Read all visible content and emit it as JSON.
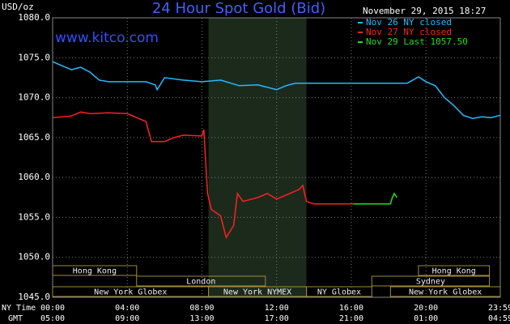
{
  "chart_data": {
    "type": "line",
    "title": "24 Hour Spot Gold (Bid)",
    "watermark": "www.kitco.com",
    "timestamp": "November 29, 2015 18:27",
    "ylabel": "USD/oz",
    "xlabel": "NY Time",
    "x2label": "GMT",
    "ylim": [
      1045,
      1080
    ],
    "yticks": [
      {
        "value": 1045,
        "label": "1045.0"
      },
      {
        "value": 1050,
        "label": "1050.0"
      },
      {
        "value": 1055,
        "label": "1055.0"
      },
      {
        "value": 1060,
        "label": "1060.0"
      },
      {
        "value": 1065,
        "label": "1065.0"
      },
      {
        "value": 1070,
        "label": "1070.0"
      },
      {
        "value": 1075,
        "label": "1075.0"
      },
      {
        "value": 1080,
        "label": "1080.0"
      }
    ],
    "xlim": [
      0,
      23.983
    ],
    "xticks": [
      {
        "value": 0,
        "label": "00:00"
      },
      {
        "value": 4,
        "label": "04:00"
      },
      {
        "value": 8,
        "label": "08:00"
      },
      {
        "value": 12,
        "label": "12:00"
      },
      {
        "value": 16,
        "label": "16:00"
      },
      {
        "value": 20,
        "label": "20:00"
      },
      {
        "value": 23.983,
        "label": "23:59"
      }
    ],
    "x2ticks": [
      {
        "value": 0,
        "label": "05:00"
      },
      {
        "value": 4,
        "label": "09:00"
      },
      {
        "value": 8,
        "label": "13:00"
      },
      {
        "value": 12,
        "label": "17:00"
      },
      {
        "value": 16,
        "label": "21:00"
      },
      {
        "value": 20,
        "label": "01:00"
      },
      {
        "value": 23.983,
        "label": "04:59"
      }
    ],
    "grid": true,
    "shaded_range": [
      8.35,
      13.6
    ],
    "sessions": [
      {
        "name": "Hong Kong",
        "row": 0,
        "start": 0,
        "end": 4.5
      },
      {
        "name": "Hong Kong",
        "row": 0,
        "start": 19.6,
        "end": 23.4
      },
      {
        "name": "London",
        "row": 1,
        "start": 4.5,
        "end": 11.4
      },
      {
        "name": "Sydney",
        "row": 1,
        "start": 17.1,
        "end": 23.4
      },
      {
        "name": "New York Globex",
        "row": 2,
        "start": 0,
        "end": 8.35
      },
      {
        "name": "New York NYMEX",
        "row": 2,
        "start": 8.35,
        "end": 13.6
      },
      {
        "name": "NY Globex",
        "row": 2,
        "start": 13.6,
        "end": 17.1
      },
      {
        "name": "New York Globex",
        "row": 2,
        "start": 18.1,
        "end": 23.983
      }
    ],
    "series": [
      {
        "name": "Nov 26 NY closed",
        "color": "#22bbff",
        "x": [
          0,
          0.5,
          1,
          1.5,
          2,
          2.5,
          3,
          4,
          5,
          5.5,
          5.6,
          6,
          7,
          8,
          9,
          10,
          11,
          12,
          12.5,
          13,
          15,
          17,
          18.1,
          19,
          19.6,
          20,
          20.5,
          21,
          21.5,
          22,
          22.5,
          23,
          23.5,
          23.983
        ],
        "values": [
          1074.5,
          1074,
          1073.5,
          1073.8,
          1073.2,
          1072.2,
          1072,
          1072,
          1072,
          1071.6,
          1071,
          1072.5,
          1072.2,
          1072,
          1072.2,
          1071.5,
          1071.6,
          1071,
          1071.5,
          1071.8,
          1071.8,
          1071.8,
          1071.8,
          1071.8,
          1072.6,
          1072,
          1071.5,
          1070,
          1069,
          1067.8,
          1067.4,
          1067.6,
          1067.5,
          1067.8
        ]
      },
      {
        "name": "Nov 27 NY closed",
        "color": "#ff2020",
        "x": [
          0,
          1,
          1.5,
          2,
          3,
          4,
          4.5,
          5,
          5.3,
          6,
          6.5,
          7,
          8,
          8.1,
          8.3,
          8.5,
          9,
          9.3,
          9.7,
          9.9,
          10.2,
          11,
          11.5,
          12,
          12.7,
          13.2,
          13.4,
          13.6,
          14,
          16.1
        ],
        "values": [
          1067.5,
          1067.7,
          1068.2,
          1068,
          1068.1,
          1068,
          1067.5,
          1067,
          1064.5,
          1064.5,
          1065,
          1065.3,
          1065.2,
          1066,
          1058,
          1056,
          1055.2,
          1052.5,
          1054,
          1058,
          1057,
          1057.5,
          1058,
          1057.3,
          1058,
          1058.5,
          1059,
          1057,
          1056.7,
          1056.7
        ]
      },
      {
        "name": "Nov 29 Last 1057.50",
        "color": "#22dd22",
        "x": [
          16.1,
          17,
          18.1,
          18.2,
          18.3,
          18.45
        ],
        "values": [
          1056.7,
          1056.7,
          1056.7,
          1057.5,
          1058,
          1057.5
        ]
      }
    ]
  }
}
